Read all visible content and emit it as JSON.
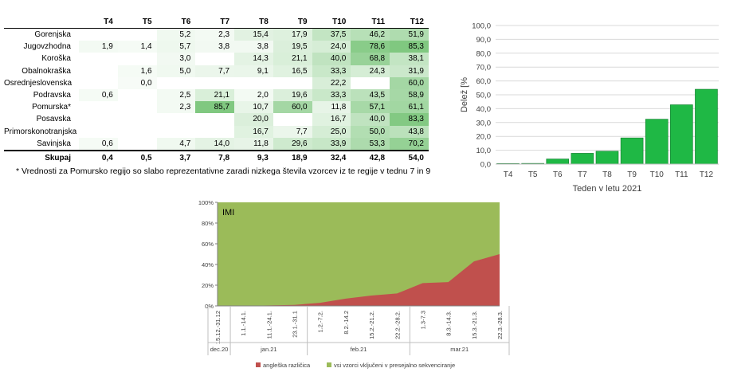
{
  "table": {
    "headers": [
      "",
      "T4",
      "T5",
      "T6",
      "T7",
      "T8",
      "T9",
      "T10",
      "T11",
      "T12"
    ],
    "rows": [
      {
        "region": "Gorenjska",
        "values": [
          "",
          "",
          "5,2",
          "2,3",
          "15,4",
          "17,9",
          "37,5",
          "46,2",
          "51,9"
        ]
      },
      {
        "region": "Jugovzhodna",
        "values": [
          "1,9",
          "1,4",
          "5,7",
          "3,8",
          "3,8",
          "19,5",
          "24,0",
          "78,6",
          "85,3"
        ]
      },
      {
        "region": "Koroška",
        "values": [
          "",
          "",
          "3,0",
          "",
          "14,3",
          "21,1",
          "40,0",
          "68,8",
          "38,1"
        ]
      },
      {
        "region": "Obalnokraška",
        "values": [
          "",
          "1,6",
          "5,0",
          "7,7",
          "9,1",
          "16,5",
          "33,3",
          "24,3",
          "31,9"
        ]
      },
      {
        "region": "Osrednjeslovenska",
        "values": [
          "",
          "0,0",
          "",
          "",
          "",
          "",
          "22,2",
          "",
          "60,0"
        ]
      },
      {
        "region": "Podravska",
        "values": [
          "0,6",
          "",
          "2,5",
          "21,1",
          "2,0",
          "19,6",
          "33,3",
          "43,5",
          "58,9"
        ]
      },
      {
        "region": "Pomurska*",
        "values": [
          "",
          "",
          "2,3",
          "85,7",
          "10,7",
          "60,0",
          "11,8",
          "57,1",
          "61,1"
        ]
      },
      {
        "region": "Posavska",
        "values": [
          "",
          "",
          "",
          "",
          "20,0",
          "",
          "16,7",
          "40,0",
          "83,3"
        ]
      },
      {
        "region": "Primorskonotranjska",
        "values": [
          "",
          "",
          "",
          "",
          "16,7",
          "7,7",
          "25,0",
          "50,0",
          "43,8"
        ]
      },
      {
        "region": "Savinjska",
        "values": [
          "0,6",
          "",
          "4,7",
          "14,0",
          "11,8",
          "29,6",
          "33,9",
          "53,3",
          "70,2"
        ]
      }
    ],
    "total": {
      "label": "Skupaj",
      "values": [
        "0,4",
        "0,5",
        "3,7",
        "7,8",
        "9,3",
        "18,9",
        "32,4",
        "42,8",
        "54,0"
      ]
    },
    "note": "* Vrednosti za Pomursko regijo so slabo reprezentativne zaradi nizkega števila vzorcev iz te regije v tednu 7 in 9"
  },
  "colors": {
    "bar": "#1fb845",
    "area_red": "#c0504d",
    "area_green": "#9bbb59",
    "heat": "#5cb85c"
  },
  "chart_data": [
    {
      "type": "bar",
      "categories": [
        "T4",
        "T5",
        "T6",
        "T7",
        "T8",
        "T9",
        "T10",
        "T11",
        "T12"
      ],
      "values": [
        0.4,
        0.5,
        3.7,
        7.8,
        9.3,
        18.9,
        32.4,
        42.8,
        54.0
      ],
      "title": "",
      "xlabel": "Teden v letu 2021",
      "ylabel": "Delež [%",
      "ylim": [
        0,
        100
      ],
      "yticks": [
        "0,0",
        "10,0",
        "20,0",
        "30,0",
        "40,0",
        "50,0",
        "60,0",
        "70,0",
        "80,0",
        "90,0",
        "100,0"
      ],
      "grid": true
    },
    {
      "type": "area",
      "title": "IMI",
      "x": [
        "15.12.-31.12",
        "1.1.-14.1.",
        "11.1.-24.1.",
        "23.1.-31.1",
        "1.2.-7.2.",
        "8.2.-14.2",
        "15.2.-21.2.",
        "22.2.-28.2.",
        "1.3-7.3",
        "8.3.-14.3.",
        "15.3.-21.3.",
        "22.3.-28.3."
      ],
      "groups": [
        {
          "label": "dec.20",
          "count": 1
        },
        {
          "label": "jan.21",
          "count": 3
        },
        {
          "label": "feb.21",
          "count": 4
        },
        {
          "label": "mar.21",
          "count": 4
        }
      ],
      "series": [
        {
          "name": "angleška različica",
          "values": [
            0,
            0,
            0.5,
            1,
            3,
            7,
            10,
            12,
            22,
            23,
            43,
            50
          ]
        },
        {
          "name": "vsi vzorci vključeni v presejalno sekvenciranje",
          "values": [
            100,
            100,
            100,
            100,
            100,
            100,
            100,
            100,
            100,
            100,
            100,
            100
          ]
        }
      ],
      "ylim": [
        0,
        100
      ],
      "yticks": [
        "0%",
        "20%",
        "40%",
        "60%",
        "80%",
        "100%"
      ],
      "legend": "bottom"
    }
  ]
}
